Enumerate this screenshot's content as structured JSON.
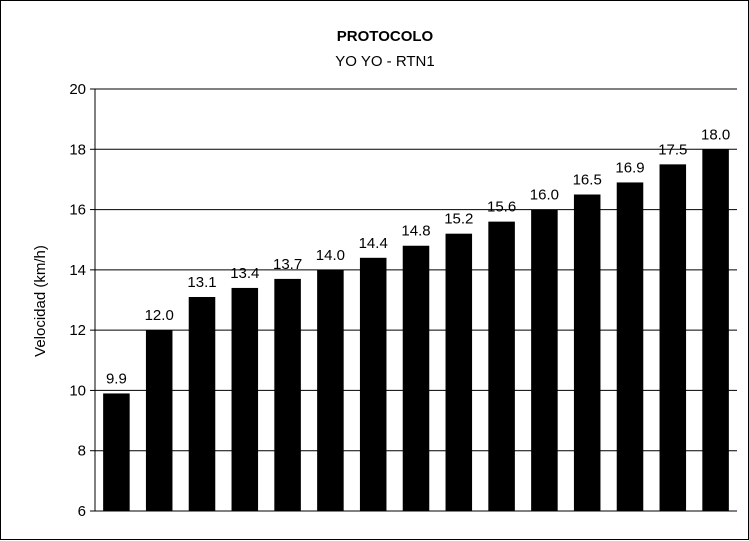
{
  "chart_data": {
    "type": "bar",
    "title": "PROTOCOLO",
    "subtitle": "YO YO - RTN1",
    "xlabel": "",
    "ylabel": "Velocidad (km/h)",
    "ylim": [
      6,
      20
    ],
    "yticks": [
      "6",
      "8",
      "10",
      "12",
      "14",
      "16",
      "18",
      "20"
    ],
    "grid": true,
    "legend": "none",
    "bar_color": "#000000",
    "data_labels": [
      "9.9",
      "12.0",
      "13.1",
      "13.4",
      "13.7",
      "14.0",
      "14.4",
      "14.8",
      "15.2",
      "15.6",
      "16.0",
      "16.5",
      "16.9",
      "17.5",
      "18.0"
    ],
    "values": [
      9.9,
      12.0,
      13.1,
      13.4,
      13.7,
      14.0,
      14.4,
      14.8,
      15.2,
      15.6,
      16.0,
      16.5,
      16.9,
      17.5,
      18.0
    ]
  }
}
